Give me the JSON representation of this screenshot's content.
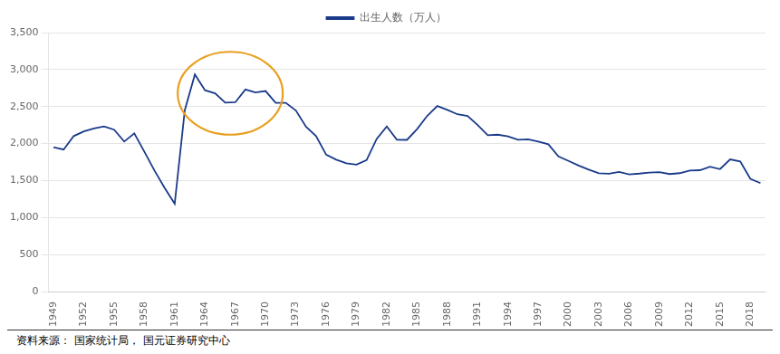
{
  "chart_data": {
    "type": "line",
    "x": [
      1949,
      1950,
      1951,
      1952,
      1953,
      1954,
      1955,
      1956,
      1957,
      1958,
      1959,
      1960,
      1961,
      1962,
      1963,
      1964,
      1965,
      1966,
      1967,
      1968,
      1969,
      1970,
      1971,
      1972,
      1973,
      1974,
      1975,
      1976,
      1977,
      1978,
      1979,
      1980,
      1981,
      1982,
      1983,
      1984,
      1985,
      1986,
      1987,
      1988,
      1989,
      1990,
      1991,
      1992,
      1993,
      1994,
      1995,
      1996,
      1997,
      1998,
      1999,
      2000,
      2001,
      2002,
      2003,
      2004,
      2005,
      2006,
      2007,
      2008,
      2009,
      2010,
      2011,
      2012,
      2013,
      2014,
      2015,
      2016,
      2017,
      2018,
      2019
    ],
    "series": [
      {
        "name": "出生人数（万人）",
        "color": "#1a3a8a",
        "values": [
          1950,
          1919,
          2101,
          2164,
          2203,
          2232,
          2188,
          2027,
          2138,
          1889,
          1635,
          1402,
          1187,
          2451,
          2934,
          2721,
          2679,
          2554,
          2558,
          2731,
          2690,
          2710,
          2551,
          2550,
          2447,
          2228,
          2102,
          1849,
          1783,
          1733,
          1715,
          1776,
          2063,
          2230,
          2052,
          2050,
          2196,
          2374,
          2508,
          2455,
          2396,
          2374,
          2250,
          2113,
          2120,
          2098,
          2052,
          2057,
          2028,
          1991,
          1827,
          1765,
          1702,
          1647,
          1599,
          1593,
          1617,
          1584,
          1594,
          1608,
          1615,
          1588,
          1600,
          1635,
          1640,
          1687,
          1655,
          1786,
          1758,
          1523,
          1465
        ]
      }
    ],
    "xlim": [
      1948.5,
      2019.5
    ],
    "xticks": [
      1949,
      1952,
      1955,
      1958,
      1961,
      1964,
      1967,
      1970,
      1973,
      1976,
      1979,
      1982,
      1985,
      1988,
      1991,
      1994,
      1997,
      2000,
      2003,
      2006,
      2009,
      2012,
      2015,
      2018
    ],
    "ylim": [
      0,
      3500
    ],
    "yticks": [
      0,
      500,
      {
        "value": 1000,
        "label": "1,000"
      },
      {
        "value": 1500,
        "label": "1,500"
      },
      {
        "value": 2000,
        "label": "2,000"
      },
      {
        "value": 2500,
        "label": "2,500"
      },
      {
        "value": 3000,
        "label": "3,000"
      },
      {
        "value": 3500,
        "label": "3,500"
      }
    ],
    "grid": "y",
    "legend": "top",
    "ellipse": {
      "cx": 1966.5,
      "cy": 2680,
      "rx": 5.2,
      "ry": 560,
      "color": "#e8a020"
    },
    "footer": "资料来源： 国家统计局， 国元证券研究中心"
  }
}
